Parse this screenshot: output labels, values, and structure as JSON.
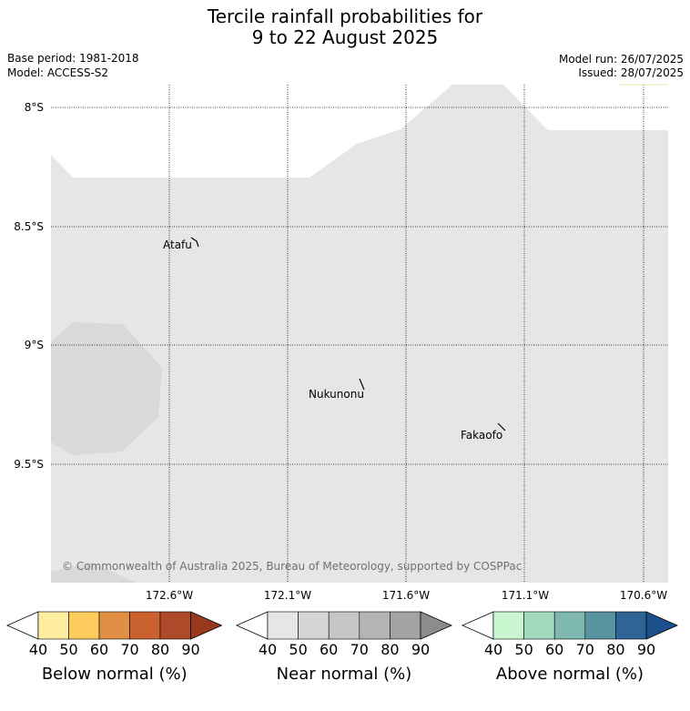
{
  "title": {
    "line1": "Tercile rainfall probabilities for",
    "line2": "9 to 22 August 2025"
  },
  "meta": {
    "base_period": "Base period: 1981-2018",
    "model": "Model: ACCESS-S2",
    "model_run": "Model run: 26/07/2025",
    "issued": "Issued: 28/07/2025"
  },
  "map": {
    "lat_labels": [
      "8°S",
      "8.5°S",
      "9°S",
      "9.5°S"
    ],
    "lon_labels": [
      "172.6°W",
      "172.1°W",
      "171.6°W",
      "171.1°W",
      "170.6°W"
    ],
    "places": [
      "Atafu",
      "Nukunonu",
      "Fakaofo"
    ],
    "copyright": "© Commonwealth of Australia 2025, Bureau of Meteorology, supported by COSPPac",
    "colors": {
      "near_normal_light": "#e6e6e6",
      "near_normal_mid": "#d9d9d9"
    }
  },
  "colorbars": [
    {
      "title": "Below normal (%)",
      "ticks": [
        "40",
        "50",
        "60",
        "70",
        "80",
        "90"
      ],
      "colors": [
        "#ffffff",
        "#ffeda0",
        "#fecc5c",
        "#e08f45",
        "#c9622f",
        "#ae4a2a",
        "#98381f"
      ]
    },
    {
      "title": "Near normal (%)",
      "ticks": [
        "40",
        "50",
        "60",
        "70",
        "80",
        "90"
      ],
      "colors": [
        "#ffffff",
        "#e6e6e6",
        "#d6d6d6",
        "#c6c6c6",
        "#b4b4b4",
        "#a3a3a3",
        "#8c8c8c"
      ]
    },
    {
      "title": "Above normal (%)",
      "ticks": [
        "40",
        "50",
        "60",
        "70",
        "80",
        "90"
      ],
      "colors": [
        "#ffffff",
        "#c9f7d0",
        "#a2d8bc",
        "#7eb8b0",
        "#5894a0",
        "#2e6496",
        "#1a4f8c"
      ]
    }
  ]
}
